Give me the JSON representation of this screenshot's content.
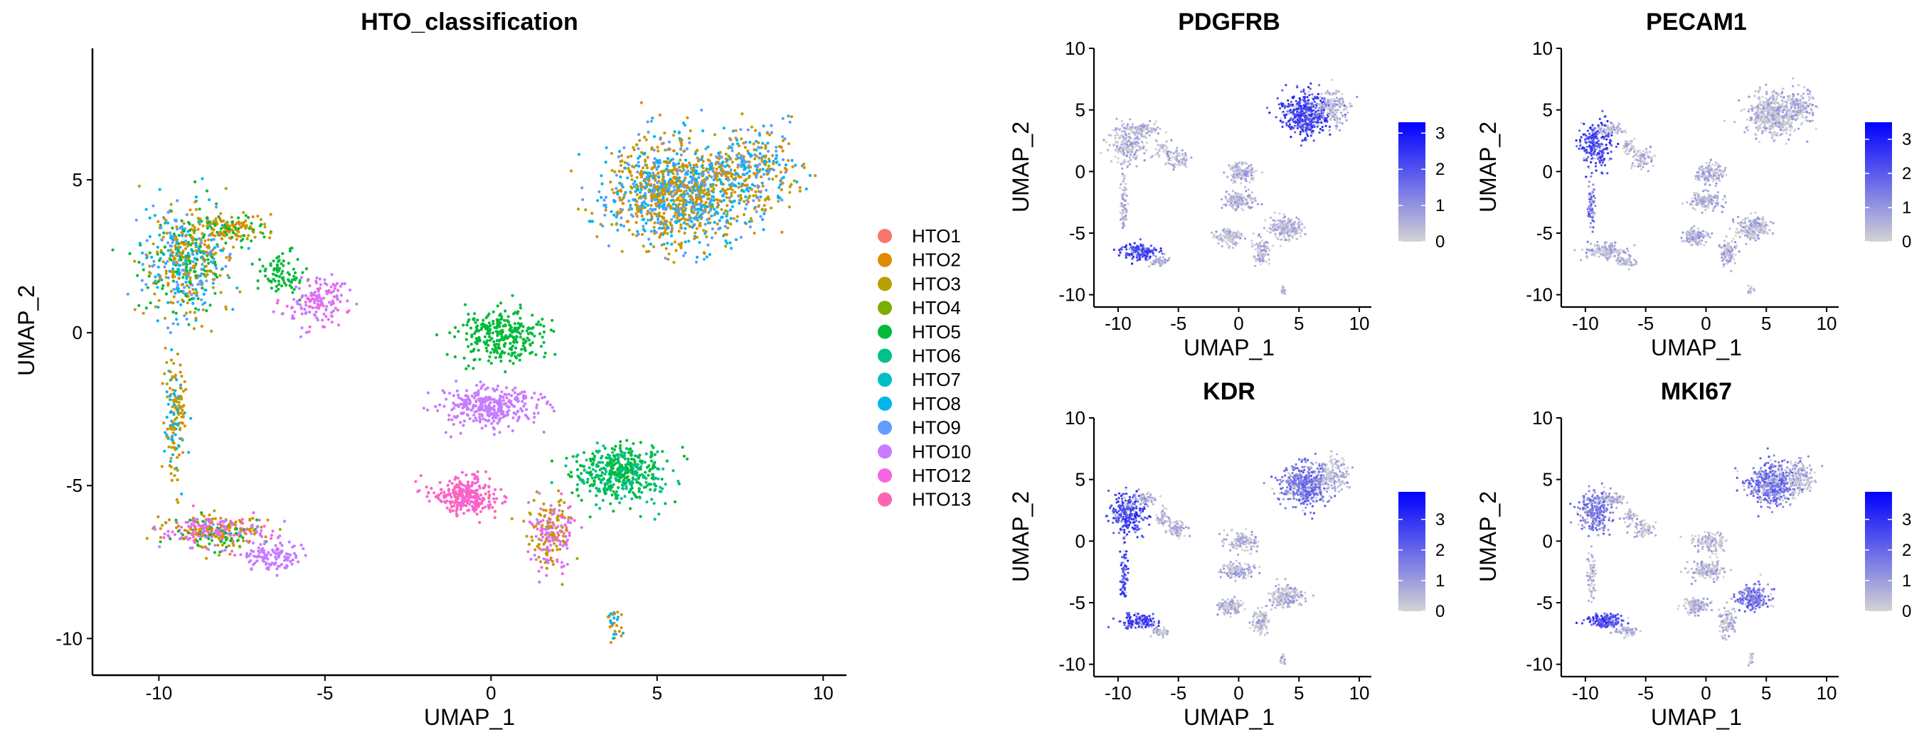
{
  "chart_data": [
    {
      "id": "hto",
      "type": "scatter",
      "title": "HTO_classification",
      "xlabel": "UMAP_1",
      "ylabel": "UMAP_2",
      "xlim": [
        -12,
        10.7
      ],
      "ylim": [
        -11.2,
        9.3
      ],
      "xticks": [
        -10,
        -5,
        0,
        5,
        10
      ],
      "yticks": [
        -10,
        -5,
        0,
        5
      ],
      "legend_position": "right",
      "grid": false,
      "legend": [
        {
          "name": "HTO1",
          "color": "#F8766D"
        },
        {
          "name": "HTO2",
          "color": "#DE8C00"
        },
        {
          "name": "HTO3",
          "color": "#B79F00"
        },
        {
          "name": "HTO4",
          "color": "#7CAE00"
        },
        {
          "name": "HTO5",
          "color": "#00BA38"
        },
        {
          "name": "HTO6",
          "color": "#00C08B"
        },
        {
          "name": "HTO7",
          "color": "#00BFC4"
        },
        {
          "name": "HTO8",
          "color": "#00B4F0"
        },
        {
          "name": "HTO9",
          "color": "#619CFF"
        },
        {
          "name": "HTO10",
          "color": "#C77CFF"
        },
        {
          "name": "HTO12",
          "color": "#F564E3"
        },
        {
          "name": "HTO13",
          "color": "#FF64B0"
        }
      ],
      "clusters": [
        {
          "name": "top-right",
          "x": 5.5,
          "y": 4.6,
          "sx": 1.6,
          "sy": 1.35,
          "count": 1100,
          "mix": "HTO2,HTO3,HTO8,HTO9"
        },
        {
          "name": "top-right-extension",
          "x": 7.8,
          "y": 5.2,
          "sx": 1.1,
          "sy": 1.2,
          "count": 350,
          "mix": "HTO8,HTO9,HTO2,HTO3"
        },
        {
          "name": "upper-left",
          "x": -9.2,
          "y": 2.3,
          "sx": 1.1,
          "sy": 1.4,
          "count": 550,
          "mix": "HTO2,HTO3,HTO8,HTO9,HTO5"
        },
        {
          "name": "upper-left-bridge",
          "x": -7.8,
          "y": 3.4,
          "sx": 0.9,
          "sy": 0.4,
          "count": 150,
          "mix": "HTO2,HTO3,HTO5"
        },
        {
          "name": "green-strip",
          "x": -6.3,
          "y": 1.9,
          "sx": 0.5,
          "sy": 0.6,
          "count": 80,
          "mix": "HTO5"
        },
        {
          "name": "purple-left",
          "x": -5.2,
          "y": 1.0,
          "sx": 0.7,
          "sy": 0.6,
          "count": 150,
          "mix": "HTO10,HTO12"
        },
        {
          "name": "left-vertical",
          "x": -9.5,
          "y": -2.8,
          "sx": 0.25,
          "sy": 1.6,
          "count": 150,
          "mix": "HTO2,HTO3,HTO8"
        },
        {
          "name": "bottom-left",
          "x": -8.3,
          "y": -6.5,
          "sx": 1.2,
          "sy": 0.45,
          "count": 350,
          "mix": "HTO2,HTO3,HTO12,HTO10,HTO5"
        },
        {
          "name": "bottom-left-purple",
          "x": -6.6,
          "y": -7.3,
          "sx": 0.7,
          "sy": 0.35,
          "count": 120,
          "mix": "HTO10"
        },
        {
          "name": "center-green",
          "x": 0.3,
          "y": -0.1,
          "sx": 1.0,
          "sy": 0.65,
          "count": 300,
          "mix": "HTO5"
        },
        {
          "name": "center-purple",
          "x": 0.0,
          "y": -2.4,
          "sx": 1.1,
          "sy": 0.55,
          "count": 320,
          "mix": "HTO10"
        },
        {
          "name": "pink-cluster",
          "x": -0.8,
          "y": -5.3,
          "sx": 0.85,
          "sy": 0.5,
          "count": 280,
          "mix": "HTO13,HTO12"
        },
        {
          "name": "teal-cluster",
          "x": 3.9,
          "y": -4.6,
          "sx": 1.1,
          "sy": 0.75,
          "count": 450,
          "mix": "HTO6,HTO5"
        },
        {
          "name": "center-mixed",
          "x": 1.8,
          "y": -6.6,
          "sx": 0.55,
          "sy": 0.9,
          "count": 220,
          "mix": "HTO2,HTO3,HTO10,HTO12"
        },
        {
          "name": "tail",
          "x": 3.7,
          "y": -9.6,
          "sx": 0.22,
          "sy": 0.45,
          "count": 30,
          "mix": "HTO2,HTO8"
        }
      ]
    },
    {
      "id": "pdgfrb",
      "type": "scatter",
      "title": "PDGFRB",
      "xlabel": "UMAP_1",
      "ylabel": "UMAP_2",
      "xlim": [
        -12,
        11
      ],
      "ylim": [
        -11,
        10
      ],
      "xticks": [
        -10,
        -5,
        0,
        5,
        10
      ],
      "yticks": [
        -10,
        -5,
        0,
        5,
        10
      ],
      "colorbar": {
        "ticks": [
          0,
          1,
          2,
          3
        ],
        "max": 3.3,
        "low_color": "#D3D3D3",
        "high_color": "#0000FF"
      },
      "high_regions": [
        "top-right",
        "bottom-left"
      ],
      "mid_regions": [
        "center-right"
      ]
    },
    {
      "id": "pecam1",
      "type": "scatter",
      "title": "PECAM1",
      "xlabel": "UMAP_1",
      "ylabel": "UMAP_2",
      "xlim": [
        -12,
        11
      ],
      "ylim": [
        -11,
        10
      ],
      "xticks": [
        -10,
        -5,
        0,
        5,
        10
      ],
      "yticks": [
        -10,
        -5,
        0,
        5,
        10
      ],
      "colorbar": {
        "ticks": [
          0,
          1,
          2,
          3
        ],
        "max": 3.5,
        "low_color": "#D3D3D3",
        "high_color": "#0000FF"
      },
      "high_regions": [
        "upper-left"
      ],
      "mid_regions": [
        "left-vertical"
      ]
    },
    {
      "id": "kdr",
      "type": "scatter",
      "title": "KDR",
      "xlabel": "UMAP_1",
      "ylabel": "UMAP_2",
      "xlim": [
        -12,
        11
      ],
      "ylim": [
        -11,
        10
      ],
      "xticks": [
        -10,
        -5,
        0,
        5,
        10
      ],
      "yticks": [
        -10,
        -5,
        0,
        5,
        10
      ],
      "colorbar": {
        "ticks": [
          0,
          1,
          2,
          3
        ],
        "max": 3.9,
        "low_color": "#D3D3D3",
        "high_color": "#0000FF"
      },
      "high_regions": [
        "upper-left",
        "left-vertical",
        "bottom-left"
      ],
      "mid_regions": [
        "top-right"
      ]
    },
    {
      "id": "mki67",
      "type": "scatter",
      "title": "MKI67",
      "xlabel": "UMAP_1",
      "ylabel": "UMAP_2",
      "xlim": [
        -12,
        11
      ],
      "ylim": [
        -11,
        10
      ],
      "xticks": [
        -10,
        -5,
        0,
        5,
        10
      ],
      "yticks": [
        -10,
        -5,
        0,
        5,
        10
      ],
      "colorbar": {
        "ticks": [
          0,
          1,
          2,
          3
        ],
        "max": 3.9,
        "low_color": "#D3D3D3",
        "high_color": "#0000FF"
      },
      "high_regions": [
        "bottom-left"
      ],
      "mid_regions": [
        "top-right",
        "teal-cluster",
        "upper-left"
      ]
    }
  ]
}
